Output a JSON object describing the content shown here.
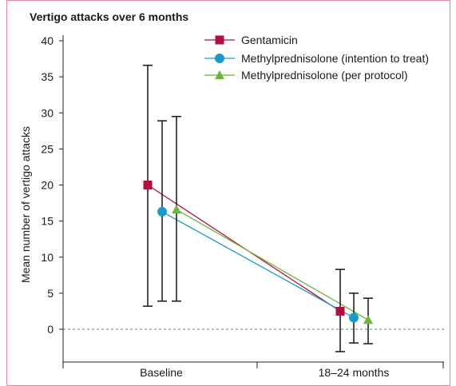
{
  "chart_data": {
    "type": "line",
    "title": "Vertigo attacks over 6 months",
    "xlabel": "",
    "ylabel": "Mean number of vertigo attacks",
    "categories": [
      "Baseline",
      "18–24 months"
    ],
    "y_ticks": [
      0,
      5,
      10,
      15,
      20,
      25,
      30,
      35,
      40
    ],
    "ylim": [
      -3.5,
      40.5
    ],
    "grid": false,
    "legend_position": "top-right",
    "reference_line": 0,
    "series": [
      {
        "name": "Gentamicin",
        "color": "#b0103e",
        "marker": "square",
        "values": [
          20.0,
          2.5
        ],
        "error_low": [
          3.2,
          -3.1
        ],
        "error_high": [
          36.6,
          8.3
        ]
      },
      {
        "name": "Methylprednisolone (intention to treat)",
        "color": "#1a9ac9",
        "marker": "circle",
        "values": [
          16.3,
          1.6
        ],
        "error_low": [
          3.9,
          -1.9
        ],
        "error_high": [
          28.9,
          5.0
        ]
      },
      {
        "name": "Methylprednisolone (per protocol)",
        "color": "#6cb33f",
        "marker": "triangle",
        "values": [
          16.6,
          1.3
        ],
        "error_low": [
          3.9,
          -2.0
        ],
        "error_high": [
          29.5,
          4.3
        ]
      }
    ]
  }
}
